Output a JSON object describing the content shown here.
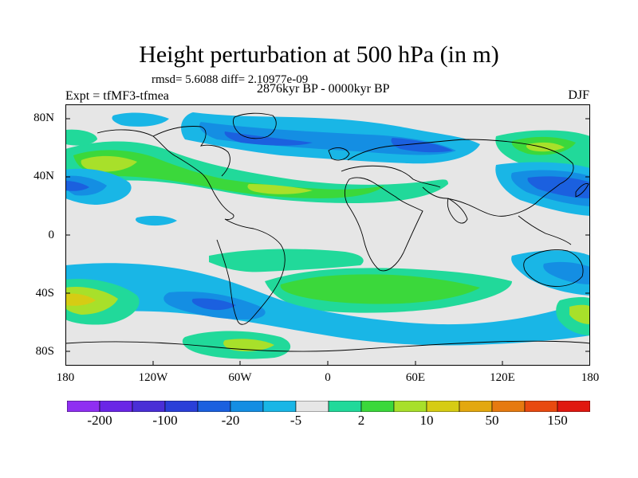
{
  "title": "Height perturbation at 500 hPa (in m)",
  "stats_line": "rmsd= 5.6088 diff= 2.10977e-09",
  "experiment": "Expt = tfMF3-tfmea",
  "period": "2876kyr BP - 0000kyr BP",
  "season": "DJF",
  "lat_labels": [
    "80N",
    "40N",
    "0",
    "40S",
    "80S"
  ],
  "lon_labels": [
    "180",
    "120W",
    "60W",
    "0",
    "60E",
    "120E",
    "180"
  ],
  "colorbar": {
    "colors": [
      "#8f2ff2",
      "#6a26e6",
      "#4a2fd6",
      "#2a3fd8",
      "#1b60df",
      "#148ee3",
      "#19b6e6",
      "#e6e6e6",
      "#21d99a",
      "#3bd83b",
      "#a8e02a",
      "#d6cc14",
      "#e3a80f",
      "#e67a10",
      "#e84a10",
      "#e01810"
    ],
    "labels": [
      "-200",
      "-100",
      "-20",
      "-5",
      "2",
      "10",
      "50",
      "150"
    ]
  }
}
